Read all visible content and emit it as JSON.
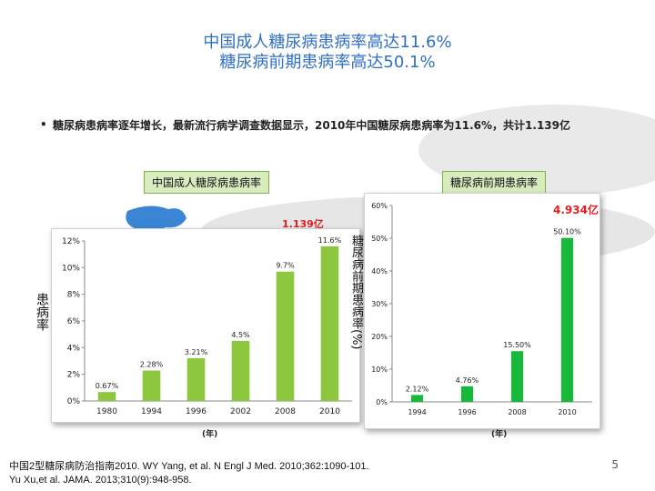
{
  "slide": {
    "title_line1": "中国成人糖尿病患病率高达11.6%",
    "title_line2": "糖尿病前期患病率高达50.1%",
    "bullet": "糖尿病患病率逐年增长，最新流行病学调查数据显示，2010年中国糖尿病患病率为11.6%，共计1.139亿",
    "page_number": "5",
    "reference_line1": "中国2型糖尿病防治指南2010.   WY Yang, et al. N Engl J Med. 2010;362:1090-101.",
    "reference_line2": "Yu Xu,et al.  JAMA. 2013;310(9):948-958.",
    "colors": {
      "title": "#2f6fc4",
      "bar": "#8dc63f",
      "bar2": "#18b83a",
      "callout": "#e02020",
      "tag_bg": "#d8ecc0"
    }
  },
  "panel_left": {
    "tag": "中国成人糖尿病患病率",
    "callout": "1.139亿",
    "ylabel": "患病率",
    "x_unit": "(年)"
  },
  "panel_right": {
    "tag": "糖尿病前期患病率",
    "callout": "4.934亿",
    "ylabel": "糖尿病前期患病率(%)",
    "x_unit": "(年)"
  },
  "chart_data": [
    {
      "type": "bar",
      "categories": [
        "1980",
        "1994",
        "1996",
        "2002",
        "2008",
        "2010"
      ],
      "values": [
        0.67,
        2.28,
        3.21,
        4.5,
        9.7,
        11.6
      ],
      "data_labels": [
        "0.67%",
        "2.28%",
        "3.21%",
        "4.5%",
        "9.7%",
        "11.6%"
      ],
      "y_ticks": [
        "0%",
        "2%",
        "4%",
        "6%",
        "8%",
        "10%",
        "12%"
      ],
      "ylim": [
        0,
        12
      ],
      "ylabel": "患病率",
      "xlabel": "(年)",
      "grid": false
    },
    {
      "type": "bar",
      "categories": [
        "1994",
        "1996",
        "2008",
        "2010"
      ],
      "values": [
        2.12,
        4.76,
        15.5,
        50.1
      ],
      "data_labels": [
        "2.12%",
        "4.76%",
        "15.50%",
        "50.10%"
      ],
      "y_ticks": [
        "0%",
        "10%",
        "20%",
        "30%",
        "40%",
        "50%",
        "60%"
      ],
      "ylim": [
        0,
        60
      ],
      "ylabel": "糖尿病前期患病率(%)",
      "xlabel": "(年)",
      "grid": false
    }
  ]
}
